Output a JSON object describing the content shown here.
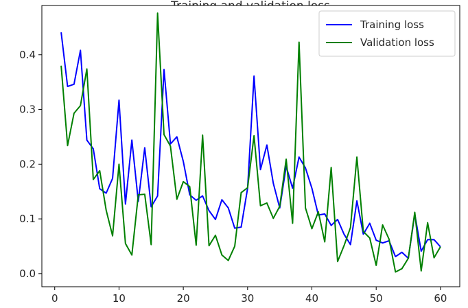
{
  "chart_data": {
    "type": "line",
    "title": "Training and validation loss",
    "xlabel": "",
    "ylabel": "",
    "xlim": [
      -2,
      63
    ],
    "ylim": [
      -0.024,
      0.49
    ],
    "xticks": [
      0,
      10,
      20,
      30,
      40,
      50,
      60
    ],
    "yticks": [
      0.0,
      0.1,
      0.2,
      0.3,
      0.4
    ],
    "ytick_labels": [
      "0.0",
      "0.1",
      "0.2",
      "0.3",
      "0.4"
    ],
    "grid": false,
    "legend_position": "top-right",
    "x": [
      1,
      2,
      3,
      4,
      5,
      6,
      7,
      8,
      9,
      10,
      11,
      12,
      13,
      14,
      15,
      16,
      17,
      18,
      19,
      20,
      21,
      22,
      23,
      24,
      25,
      26,
      27,
      28,
      29,
      30,
      31,
      32,
      33,
      34,
      35,
      36,
      37,
      38,
      39,
      40,
      41,
      42,
      43,
      44,
      45,
      46,
      47,
      48,
      49,
      50,
      51,
      52,
      53,
      54,
      55,
      56,
      57,
      58,
      59,
      60
    ],
    "series": [
      {
        "name": "Training loss",
        "color": "#0000ff",
        "values": [
          0.441,
          0.342,
          0.346,
          0.408,
          0.244,
          0.228,
          0.155,
          0.147,
          0.174,
          0.317,
          0.127,
          0.244,
          0.132,
          0.23,
          0.122,
          0.142,
          0.373,
          0.237,
          0.25,
          0.205,
          0.144,
          0.134,
          0.142,
          0.115,
          0.099,
          0.135,
          0.12,
          0.083,
          0.085,
          0.156,
          0.361,
          0.19,
          0.235,
          0.165,
          0.12,
          0.196,
          0.156,
          0.213,
          0.193,
          0.156,
          0.107,
          0.109,
          0.088,
          0.099,
          0.072,
          0.053,
          0.133,
          0.072,
          0.092,
          0.061,
          0.056,
          0.06,
          0.031,
          0.039,
          0.028,
          0.109,
          0.041,
          0.062,
          0.062,
          0.049
        ]
      },
      {
        "name": "Validation loss",
        "color": "#008000",
        "values": [
          0.38,
          0.234,
          0.293,
          0.307,
          0.374,
          0.172,
          0.188,
          0.116,
          0.069,
          0.2,
          0.055,
          0.034,
          0.144,
          0.145,
          0.053,
          0.476,
          0.254,
          0.233,
          0.136,
          0.168,
          0.159,
          0.052,
          0.253,
          0.051,
          0.07,
          0.034,
          0.024,
          0.05,
          0.148,
          0.157,
          0.252,
          0.124,
          0.129,
          0.101,
          0.123,
          0.209,
          0.092,
          0.423,
          0.12,
          0.082,
          0.113,
          0.058,
          0.194,
          0.022,
          0.051,
          0.084,
          0.213,
          0.077,
          0.065,
          0.015,
          0.089,
          0.063,
          0.003,
          0.009,
          0.028,
          0.112,
          0.005,
          0.093,
          0.029,
          0.049
        ]
      }
    ]
  }
}
